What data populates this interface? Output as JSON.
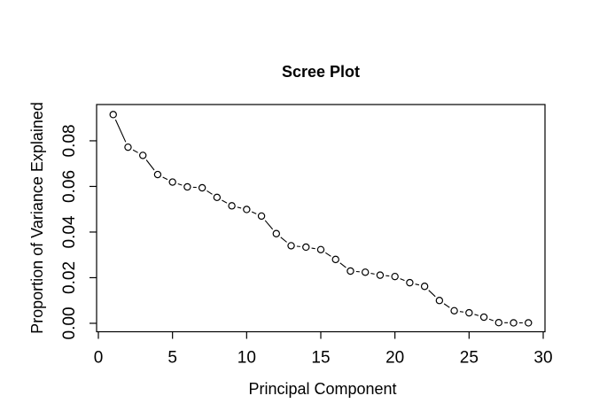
{
  "chart_data": {
    "type": "line",
    "title": "Scree Plot",
    "xlabel": "Principal Component",
    "ylabel": "Proportion of Variance Explained",
    "x": [
      1,
      2,
      3,
      4,
      5,
      6,
      7,
      8,
      9,
      10,
      11,
      12,
      13,
      14,
      15,
      16,
      17,
      18,
      19,
      20,
      21,
      22,
      23,
      24,
      25,
      26,
      27,
      28,
      29
    ],
    "y": [
      0.0915,
      0.0772,
      0.0736,
      0.0652,
      0.0619,
      0.0598,
      0.0594,
      0.0552,
      0.0515,
      0.0499,
      0.047,
      0.0393,
      0.034,
      0.0334,
      0.0323,
      0.028,
      0.0229,
      0.0224,
      0.0211,
      0.0205,
      0.0178,
      0.0162,
      0.01,
      0.0055,
      0.0046,
      0.0027,
      0.0003,
      0.0002,
      0.0002
    ],
    "x_ticks": {
      "values": [
        0,
        5,
        10,
        15,
        20,
        25,
        30
      ],
      "labels": [
        "0",
        "5",
        "10",
        "15",
        "20",
        "25",
        "30"
      ]
    },
    "y_ticks": {
      "values": [
        0,
        0.02,
        0.04,
        0.06,
        0.08
      ],
      "labels": [
        "0.00",
        "0.02",
        "0.04",
        "0.06",
        "0.08"
      ]
    },
    "xlim": [
      -0.12,
      30.12
    ],
    "ylim": [
      -0.0037,
      0.0959
    ],
    "grid": false,
    "legend": null,
    "marker": "open-circle",
    "line_type": "points-and-segments",
    "colors": {
      "stroke": "#000000",
      "background": "#ffffff",
      "marker_fill": "#ffffff"
    }
  }
}
